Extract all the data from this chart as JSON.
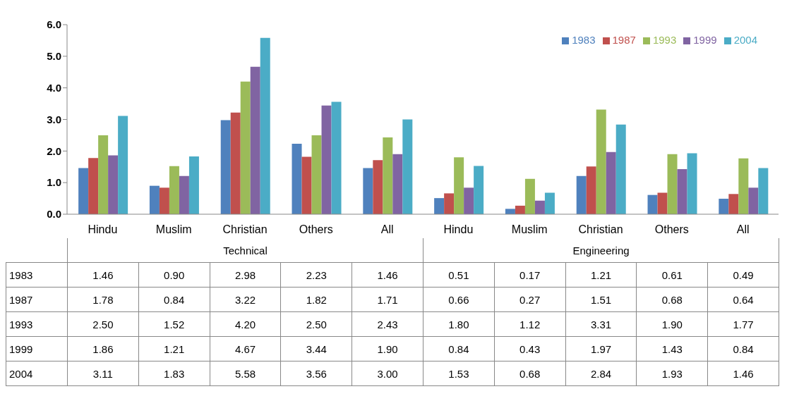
{
  "chart_data": {
    "type": "bar",
    "categories": [
      "Hindu",
      "Muslim",
      "Christian",
      "Others",
      "All",
      "Hindu",
      "Muslim",
      "Christian",
      "Others",
      "All"
    ],
    "annotations": [
      "Technical",
      "Engineering"
    ],
    "series": [
      {
        "name": "1983",
        "color": "#4f81bd",
        "values": [
          1.46,
          0.9,
          2.98,
          2.23,
          1.46,
          0.51,
          0.17,
          1.21,
          0.61,
          0.49
        ],
        "value_labels": [
          "1.46",
          "0.90",
          "2.98",
          "2.23",
          "1.46",
          "0.51",
          "0.17",
          "1.21",
          "0.61",
          "0.49"
        ]
      },
      {
        "name": "1987",
        "color": "#c0504d",
        "values": [
          1.78,
          0.84,
          3.22,
          1.82,
          1.71,
          0.66,
          0.27,
          1.51,
          0.68,
          0.64
        ],
        "value_labels": [
          "1.78",
          "0.84",
          "3.22",
          "1.82",
          "1.71",
          "0.66",
          "0.27",
          "1.51",
          "0.68",
          "0.64"
        ]
      },
      {
        "name": "1993",
        "color": "#9bbb59",
        "values": [
          2.5,
          1.52,
          4.2,
          2.5,
          2.43,
          1.8,
          1.12,
          3.31,
          1.9,
          1.77
        ],
        "value_labels": [
          "2.50",
          "1.52",
          "4.20",
          "2.50",
          "2.43",
          "1.80",
          "1.12",
          "3.31",
          "1.90",
          "1.77"
        ]
      },
      {
        "name": "1999",
        "color": "#8064a2",
        "values": [
          1.86,
          1.21,
          4.67,
          3.44,
          1.9,
          0.84,
          0.43,
          1.97,
          1.43,
          0.84
        ],
        "value_labels": [
          "1.86",
          "1.21",
          "4.67",
          "3.44",
          "1.90",
          "0.84",
          "0.43",
          "1.97",
          "1.43",
          "0.84"
        ]
      },
      {
        "name": "2004",
        "color": "#4bacc6",
        "values": [
          3.11,
          1.83,
          5.58,
          3.56,
          3.0,
          1.53,
          0.68,
          2.84,
          1.93,
          1.46
        ],
        "value_labels": [
          "3.11",
          "1.83",
          "5.58",
          "3.56",
          "3.00",
          "1.53",
          "0.68",
          "2.84",
          "1.93",
          "1.46"
        ]
      }
    ],
    "ylim": [
      0,
      6
    ],
    "yticks": [
      {
        "value": 0,
        "label": "0.0"
      },
      {
        "value": 1,
        "label": "1.0"
      },
      {
        "value": 2,
        "label": "2.0"
      },
      {
        "value": 3,
        "label": "3.0"
      },
      {
        "value": 4,
        "label": "4.0"
      },
      {
        "value": 5,
        "label": "5.0"
      },
      {
        "value": 6,
        "label": "6.0"
      }
    ],
    "legend": "top right"
  }
}
